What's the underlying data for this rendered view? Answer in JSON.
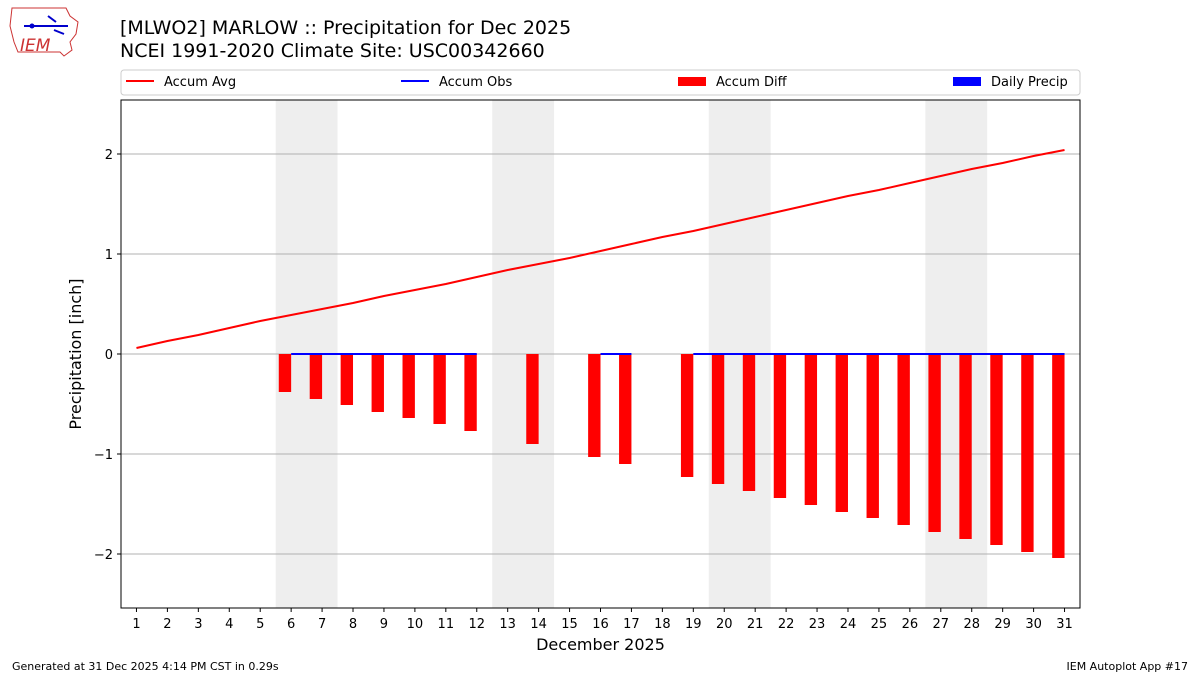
{
  "header": {
    "title": "[MLWO2] MARLOW :: Precipitation for Dec 2025",
    "subtitle": "NCEI 1991-2020 Climate Site: USC00342660"
  },
  "logo": {
    "text": "IEM"
  },
  "footer": {
    "left": "Generated at 31 Dec 2025 4:14 PM CST in 0.29s",
    "right": "IEM Autoplot App #17"
  },
  "chart_data": {
    "type": "bar",
    "xlabel": "December 2025",
    "ylabel": "Precipitation [inch]",
    "xlim": [
      0.5,
      31.5
    ],
    "ylim": [
      -2.54,
      2.54
    ],
    "yticks": [
      -2,
      -1,
      0,
      1,
      2
    ],
    "ytick_labels": [
      "−2",
      "−1",
      "0",
      "1",
      "2"
    ],
    "x": [
      1,
      2,
      3,
      4,
      5,
      6,
      7,
      8,
      9,
      10,
      11,
      12,
      13,
      14,
      15,
      16,
      17,
      18,
      19,
      20,
      21,
      22,
      23,
      24,
      25,
      26,
      27,
      28,
      29,
      30,
      31
    ],
    "grid": "horizontal",
    "legend": "top",
    "weekend_shading": [
      [
        5.5,
        7.5
      ],
      [
        12.5,
        14.5
      ],
      [
        19.5,
        21.5
      ],
      [
        26.5,
        28.5
      ]
    ],
    "series": [
      {
        "name": "Accum Avg",
        "type": "line",
        "color": "#ff0000",
        "values": [
          0.06,
          0.13,
          0.19,
          0.26,
          0.33,
          0.39,
          0.45,
          0.51,
          0.58,
          0.64,
          0.7,
          0.77,
          0.84,
          0.9,
          0.96,
          1.03,
          1.1,
          1.17,
          1.23,
          1.3,
          1.37,
          1.44,
          1.51,
          1.58,
          1.64,
          1.71,
          1.78,
          1.85,
          1.91,
          1.98,
          2.04
        ]
      },
      {
        "name": "Accum Obs",
        "type": "line",
        "color": "#0000ff",
        "values": [
          null,
          null,
          null,
          null,
          null,
          0,
          0,
          0,
          0,
          0,
          0,
          0,
          null,
          null,
          null,
          0,
          0,
          null,
          0,
          0,
          0,
          0,
          0,
          0,
          0,
          0,
          0,
          0,
          0,
          0,
          0
        ]
      },
      {
        "name": "Accum Diff",
        "type": "bar",
        "color": "#ff0000",
        "values": [
          null,
          null,
          null,
          null,
          null,
          -0.38,
          -0.45,
          -0.51,
          -0.58,
          -0.64,
          -0.7,
          -0.77,
          null,
          -0.9,
          null,
          -1.03,
          -1.1,
          null,
          -1.23,
          -1.3,
          -1.37,
          -1.44,
          -1.51,
          -1.58,
          -1.64,
          -1.71,
          -1.78,
          -1.85,
          -1.91,
          -1.98,
          -2.04
        ]
      },
      {
        "name": "Daily Precip",
        "type": "bar",
        "color": "#0000ff",
        "values": [
          null,
          null,
          null,
          null,
          null,
          0,
          0,
          0,
          0,
          0,
          0,
          0,
          null,
          null,
          null,
          0,
          0,
          null,
          0,
          0,
          0,
          0,
          0,
          0,
          0,
          0,
          0,
          0,
          0,
          0,
          0
        ]
      }
    ]
  }
}
